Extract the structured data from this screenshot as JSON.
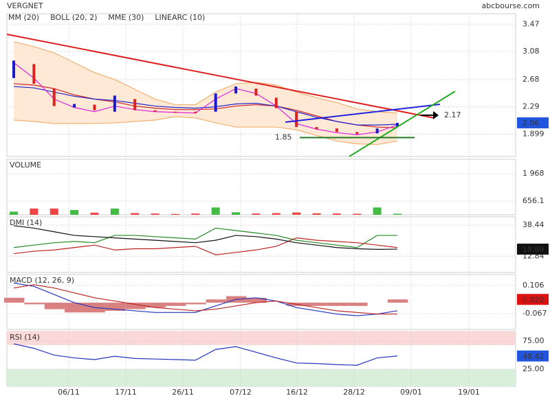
{
  "header": {
    "title": "VERGNET",
    "source": "abcbourse.com"
  },
  "x_axis_labels": [
    "06/11",
    "17/11",
    "26/11",
    "07/12",
    "16/12",
    "28/12",
    "09/01",
    "19/01"
  ],
  "chart_data": [
    {
      "type": "candlestick",
      "open": [
        2.7,
        2.9,
        2.55,
        2.28,
        2.32,
        2.22,
        2.4,
        2.24,
        2.22,
        2.22,
        2.22,
        2.48,
        2.55,
        2.42,
        2.22,
        2.0,
        1.98,
        1.93,
        1.91,
        2.0
      ],
      "close": [
        2.95,
        2.62,
        2.3,
        2.33,
        2.24,
        2.45,
        2.24,
        2.22,
        2.21,
        2.2,
        2.48,
        2.58,
        2.45,
        2.27,
        2.0,
        1.97,
        1.93,
        1.9,
        1.98,
        2.06
      ],
      "up_color": "#1a1acc",
      "down_color": "#dd2222",
      "series": [
        {
          "name": "MM (20)",
          "color": "#cc2222",
          "values": [
            2.62,
            2.6,
            2.55,
            2.46,
            2.4,
            2.36,
            2.3,
            2.27,
            2.25,
            2.25,
            2.26,
            2.3,
            2.32,
            2.3,
            2.24,
            2.16,
            2.08,
            2.03,
            2.0,
            1.99
          ]
        },
        {
          "name": "BOLL (20, 2)",
          "color": "#f0b070",
          "values": [
            3.22,
            3.15,
            3.06,
            2.92,
            2.78,
            2.68,
            2.54,
            2.4,
            2.32,
            2.32,
            2.5,
            2.62,
            2.64,
            2.6,
            2.5,
            2.42,
            2.35,
            2.26,
            2.22,
            2.2
          ],
          "lower": [
            2.1,
            2.08,
            2.05,
            2.05,
            2.05,
            2.06,
            2.08,
            2.1,
            2.15,
            2.13,
            2.06,
            2.0,
            2.0,
            2.0,
            1.96,
            1.88,
            1.8,
            1.76,
            1.75,
            1.8
          ]
        },
        {
          "name": "MME (30)",
          "color": "#2222cc",
          "values": [
            2.58,
            2.56,
            2.5,
            2.44,
            2.4,
            2.38,
            2.34,
            2.3,
            2.28,
            2.27,
            2.29,
            2.33,
            2.34,
            2.3,
            2.22,
            2.14,
            2.08,
            2.03,
            2.03,
            2.04
          ]
        },
        {
          "name": "LINEARC (10)",
          "color": "#dd22dd",
          "values": [
            2.92,
            2.7,
            2.4,
            2.28,
            2.22,
            2.3,
            2.25,
            2.22,
            2.21,
            2.2,
            2.4,
            2.55,
            2.48,
            2.3,
            2.05,
            1.97,
            1.92,
            1.89,
            1.93,
            2.03
          ]
        }
      ],
      "annotations": [
        1.85,
        2.17
      ],
      "ylim": [
        1.58,
        3.62
      ],
      "yticks": [
        3.47,
        3.08,
        2.68,
        2.29,
        1.899
      ],
      "last_label": 2.06,
      "last_color": "#2255dd"
    },
    {
      "type": "bar",
      "title": "VOLUME",
      "title_color": "#22aa22",
      "values": [
        150,
        300,
        300,
        230,
        100,
        300,
        80,
        60,
        40,
        60,
        350,
        120,
        60,
        80,
        110,
        70,
        60,
        50,
        350,
        50
      ],
      "up_color": "#44bb44",
      "down_color": "#ee4444",
      "ylim": [
        0,
        2660
      ],
      "yticks": [
        {
          "value": 1968,
          "label": "1 968"
        },
        656.1
      ]
    },
    {
      "type": "line",
      "title": "DMI (14)",
      "series": [
        {
          "color": "#228822",
          "values": [
            20,
            22,
            24,
            25,
            24,
            30,
            30,
            29,
            28,
            27,
            36,
            34,
            32,
            30,
            26,
            24,
            22,
            20,
            30,
            30
          ]
        },
        {
          "color": "#bb2222",
          "values": [
            15,
            17,
            18,
            20,
            22,
            18,
            19,
            19,
            20,
            21,
            14,
            16,
            18,
            21,
            28,
            26,
            25,
            24,
            22,
            20
          ]
        },
        {
          "color": "#111111",
          "values": [
            38,
            36,
            33,
            30,
            29,
            28,
            27,
            26,
            25,
            24,
            26,
            30,
            29,
            27,
            24,
            22,
            20,
            19,
            18.5,
            18.69
          ]
        }
      ],
      "ylim": [
        -0.5,
        45.3
      ],
      "yticks": [
        38.44,
        12.84
      ],
      "last_label": 18.69,
      "last_color": "#111111"
    },
    {
      "type": "macd",
      "title": "MACD (12, 26, 9)",
      "histogram": [
        0.03,
        -0.01,
        -0.04,
        -0.06,
        -0.06,
        -0.05,
        -0.04,
        -0.03,
        -0.02,
        -0.01,
        0.02,
        0.04,
        0.03,
        0.0,
        -0.02,
        -0.02,
        -0.02,
        -0.02,
        0.0,
        0.02
      ],
      "histogram_color": "#d98080",
      "series": [
        {
          "color": "#2233bb",
          "values": [
            0.12,
            0.1,
            0.05,
            0.0,
            -0.03,
            -0.04,
            -0.05,
            -0.06,
            -0.06,
            -0.06,
            -0.02,
            0.02,
            0.03,
            0.01,
            -0.03,
            -0.05,
            -0.07,
            -0.08,
            -0.07,
            -0.05
          ]
        },
        {
          "color": "#bb2222",
          "values": [
            0.09,
            0.11,
            0.09,
            0.06,
            0.03,
            0.01,
            -0.01,
            -0.03,
            -0.04,
            -0.05,
            -0.04,
            -0.02,
            0.0,
            0.01,
            -0.01,
            -0.03,
            -0.05,
            -0.06,
            -0.07,
            -0.07
          ]
        }
      ],
      "ylim": [
        -0.164,
        0.173
      ],
      "yticks": [
        0.106,
        -0.067
      ],
      "last_label": {
        "value": 0.02,
        "label": "0.020"
      },
      "last_color": "#dd1111"
    },
    {
      "type": "line",
      "title": "RSI (14)",
      "series": [
        {
          "color": "#2233bb",
          "values": [
            70,
            62,
            50,
            45,
            42,
            48,
            44,
            43,
            42,
            41,
            60,
            65,
            55,
            45,
            36,
            35,
            33,
            32,
            45,
            48.42
          ]
        }
      ],
      "ylim": [
        -5.5,
        92
      ],
      "yticks": [
        {
          "value": 75,
          "label": "75.00"
        },
        {
          "value": 25,
          "label": "25.00"
        }
      ],
      "last_label": 48.42,
      "last_color": "#2255dd"
    }
  ]
}
